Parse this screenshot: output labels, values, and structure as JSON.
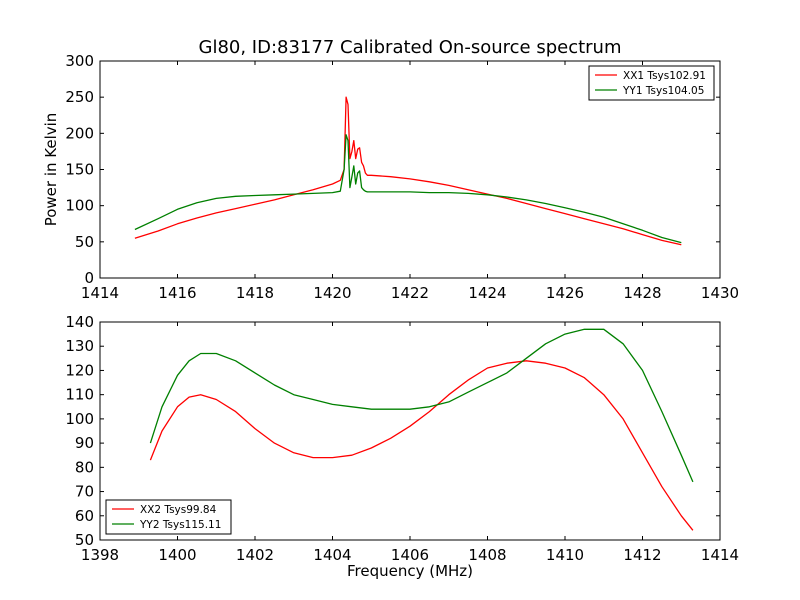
{
  "chart_data": [
    {
      "type": "line",
      "title": "Gl80, ID:83177 Calibrated On-source spectrum",
      "xlabel": "",
      "ylabel": "Power in Kelvin",
      "xlim": [
        1414,
        1430
      ],
      "ylim": [
        0,
        300
      ],
      "xticks": [
        "1414",
        "1416",
        "1418",
        "1420",
        "1422",
        "1424",
        "1426",
        "1428",
        "1430"
      ],
      "yticks": [
        "0",
        "50",
        "100",
        "150",
        "200",
        "250",
        "300"
      ],
      "grid": false,
      "legend_position": "upper right",
      "series": [
        {
          "name": "XX1 Tsys102.91",
          "color": "#ff0000",
          "x": [
            1414.9,
            1415.5,
            1416.0,
            1416.5,
            1417.0,
            1417.5,
            1418.0,
            1418.5,
            1419.0,
            1419.5,
            1420.0,
            1420.2,
            1420.3,
            1420.35,
            1420.4,
            1420.45,
            1420.5,
            1420.55,
            1420.6,
            1420.65,
            1420.7,
            1420.75,
            1420.8,
            1420.85,
            1420.9,
            1421.0,
            1421.5,
            1422.0,
            1422.5,
            1423.0,
            1423.5,
            1424.0,
            1424.5,
            1425.0,
            1425.5,
            1426.0,
            1426.5,
            1427.0,
            1427.5,
            1428.0,
            1428.5,
            1429.0
          ],
          "y": [
            55,
            65,
            75,
            83,
            90,
            96,
            102,
            108,
            115,
            122,
            130,
            135,
            150,
            250,
            240,
            165,
            175,
            190,
            165,
            178,
            180,
            160,
            155,
            145,
            142,
            142,
            140,
            137,
            133,
            128,
            122,
            116,
            110,
            103,
            96,
            89,
            82,
            75,
            68,
            60,
            52,
            46
          ]
        },
        {
          "name": "YY1 Tsys104.05",
          "color": "#008000",
          "x": [
            1414.9,
            1415.5,
            1416.0,
            1416.5,
            1417.0,
            1417.5,
            1418.0,
            1418.5,
            1419.0,
            1419.5,
            1420.0,
            1420.2,
            1420.3,
            1420.35,
            1420.4,
            1420.45,
            1420.5,
            1420.55,
            1420.6,
            1420.65,
            1420.7,
            1420.75,
            1420.8,
            1420.85,
            1420.9,
            1421.0,
            1421.5,
            1422.0,
            1422.5,
            1423.0,
            1423.5,
            1424.0,
            1424.5,
            1425.0,
            1425.5,
            1426.0,
            1426.5,
            1427.0,
            1427.5,
            1428.0,
            1428.5,
            1429.0
          ],
          "y": [
            67,
            82,
            95,
            104,
            110,
            113,
            114,
            115,
            116,
            117,
            118,
            120,
            150,
            198,
            190,
            125,
            140,
            155,
            130,
            145,
            148,
            125,
            122,
            120,
            119,
            119,
            119,
            119,
            118,
            118,
            117,
            115,
            112,
            108,
            103,
            97,
            91,
            84,
            75,
            66,
            56,
            49
          ]
        }
      ]
    },
    {
      "type": "line",
      "title": "",
      "xlabel": "Frequency (MHz)",
      "ylabel": "",
      "xlim": [
        1398,
        1414
      ],
      "ylim": [
        50,
        140
      ],
      "xticks": [
        "1398",
        "1400",
        "1402",
        "1404",
        "1406",
        "1408",
        "1410",
        "1412",
        "1414"
      ],
      "yticks": [
        "50",
        "60",
        "70",
        "80",
        "90",
        "100",
        "110",
        "120",
        "130",
        "140"
      ],
      "grid": false,
      "legend_position": "lower left",
      "series": [
        {
          "name": "XX2 Tsys99.84",
          "color": "#ff0000",
          "x": [
            1399.3,
            1399.6,
            1400.0,
            1400.3,
            1400.6,
            1401.0,
            1401.5,
            1402.0,
            1402.5,
            1403.0,
            1403.5,
            1404.0,
            1404.5,
            1405.0,
            1405.5,
            1406.0,
            1406.5,
            1407.0,
            1407.5,
            1408.0,
            1408.5,
            1409.0,
            1409.5,
            1410.0,
            1410.5,
            1411.0,
            1411.5,
            1412.0,
            1412.5,
            1413.0,
            1413.3
          ],
          "y": [
            83,
            95,
            105,
            109,
            110,
            108,
            103,
            96,
            90,
            86,
            84,
            84,
            85,
            88,
            92,
            97,
            103,
            110,
            116,
            121,
            123,
            124,
            123,
            121,
            117,
            110,
            100,
            86,
            72,
            60,
            54
          ]
        },
        {
          "name": "YY2 Tsys115.11",
          "color": "#008000",
          "x": [
            1399.3,
            1399.6,
            1400.0,
            1400.3,
            1400.6,
            1401.0,
            1401.5,
            1402.0,
            1402.5,
            1403.0,
            1403.5,
            1404.0,
            1404.5,
            1405.0,
            1405.5,
            1406.0,
            1406.5,
            1407.0,
            1407.5,
            1408.0,
            1408.5,
            1409.0,
            1409.5,
            1410.0,
            1410.5,
            1411.0,
            1411.5,
            1412.0,
            1412.5,
            1413.0,
            1413.3
          ],
          "y": [
            90,
            105,
            118,
            124,
            127,
            127,
            124,
            119,
            114,
            110,
            108,
            106,
            105,
            104,
            104,
            104,
            105,
            107,
            111,
            115,
            119,
            125,
            131,
            135,
            137,
            137,
            131,
            120,
            103,
            85,
            74
          ]
        }
      ]
    }
  ]
}
